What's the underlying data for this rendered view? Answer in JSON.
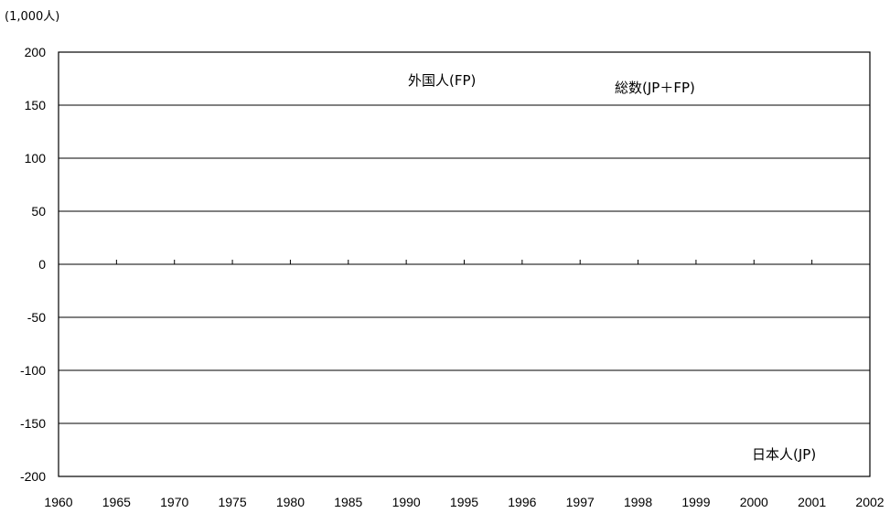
{
  "chart_data": {
    "type": "line",
    "unit_label": "(1,000人)",
    "categories": [
      "1960",
      "1965",
      "1970",
      "1975",
      "1980",
      "1985",
      "1990",
      "1995",
      "1996",
      "1997",
      "1998",
      "1999",
      "2000",
      "2001",
      "2002"
    ],
    "y_ticks": [
      "200",
      "150",
      "100",
      "50",
      "0",
      "-50",
      "-100",
      "-150",
      "-200"
    ],
    "ylim": [
      -200,
      200
    ],
    "grid": true,
    "series": [
      {
        "name": "外国人(FP)",
        "values": [
          null,
          null,
          null,
          null,
          null,
          null,
          null,
          null,
          null,
          null,
          null,
          null,
          null,
          null,
          null
        ]
      },
      {
        "name": "総数(JP+FP)",
        "values": [
          null,
          null,
          null,
          null,
          null,
          null,
          null,
          null,
          null,
          null,
          null,
          null,
          null,
          null,
          null
        ]
      },
      {
        "name": "日本人(JP)",
        "values": [
          null,
          null,
          null,
          null,
          null,
          null,
          null,
          null,
          null,
          null,
          null,
          null,
          null,
          null,
          null
        ]
      }
    ],
    "series_labels": {
      "foreign": "外国人(FP)",
      "total": "総数(JP＋FP)",
      "japanese": "日本人(JP)"
    }
  }
}
